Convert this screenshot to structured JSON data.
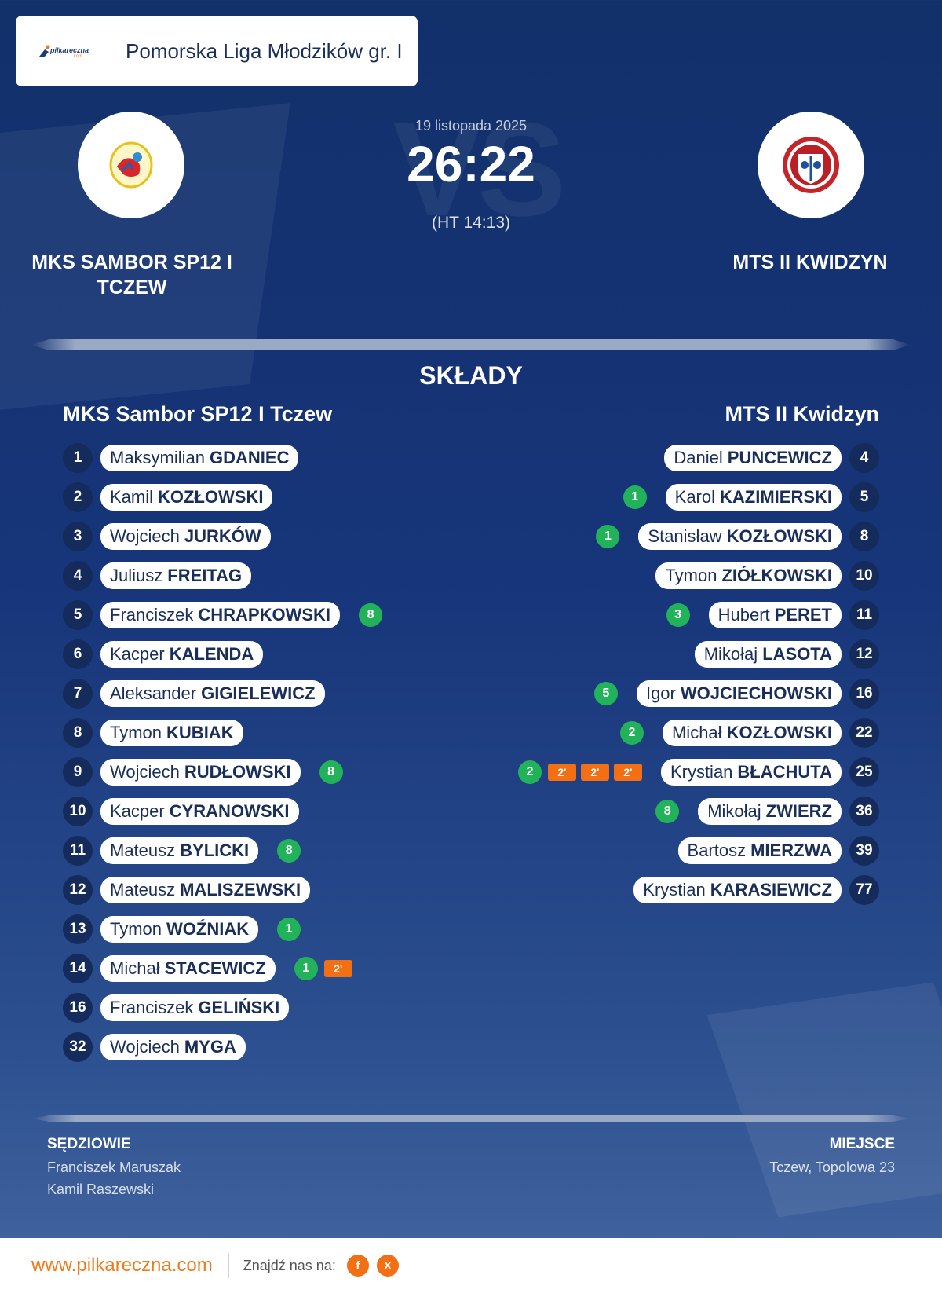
{
  "header": {
    "logo_text": "pilkareczna",
    "logo_subtext": ".com",
    "league": "Pomorska Liga Młodzików gr. I"
  },
  "match": {
    "date": "19 listopada 2025",
    "score": "26:22",
    "halftime": "(HT 14:13)",
    "watermark": "VS",
    "home_name": "MKS SAMBOR SP12 I TCZEW",
    "away_name": "MTS II KWIDZYN"
  },
  "lineups": {
    "title": "SKŁADY",
    "home_team": "MKS Sambor SP12 I Tczew",
    "away_team": "MTS II Kwidzyn",
    "home": [
      {
        "num": "1",
        "first": "Maksymilian",
        "last": "GDANIEC",
        "goals": "",
        "pens": []
      },
      {
        "num": "2",
        "first": "Kamil",
        "last": "KOZŁOWSKI",
        "goals": "",
        "pens": []
      },
      {
        "num": "3",
        "first": "Wojciech",
        "last": "JURKÓW",
        "goals": "",
        "pens": []
      },
      {
        "num": "4",
        "first": "Juliusz",
        "last": "FREITAG",
        "goals": "",
        "pens": []
      },
      {
        "num": "5",
        "first": "Franciszek",
        "last": "CHRAPKOWSKI",
        "goals": "8",
        "pens": []
      },
      {
        "num": "6",
        "first": "Kacper",
        "last": "KALENDA",
        "goals": "",
        "pens": []
      },
      {
        "num": "7",
        "first": "Aleksander",
        "last": "GIGIELEWICZ",
        "goals": "",
        "pens": []
      },
      {
        "num": "8",
        "first": "Tymon",
        "last": "KUBIAK",
        "goals": "",
        "pens": []
      },
      {
        "num": "9",
        "first": "Wojciech",
        "last": "RUDŁOWSKI",
        "goals": "8",
        "pens": []
      },
      {
        "num": "10",
        "first": "Kacper",
        "last": "CYRANOWSKI",
        "goals": "",
        "pens": []
      },
      {
        "num": "11",
        "first": "Mateusz",
        "last": "BYLICKI",
        "goals": "8",
        "pens": []
      },
      {
        "num": "12",
        "first": "Mateusz",
        "last": "MALISZEWSKI",
        "goals": "",
        "pens": []
      },
      {
        "num": "13",
        "first": "Tymon",
        "last": "WOŹNIAK",
        "goals": "1",
        "pens": []
      },
      {
        "num": "14",
        "first": "Michał",
        "last": "STACEWICZ",
        "goals": "1",
        "pens": [
          "2'"
        ]
      },
      {
        "num": "16",
        "first": "Franciszek",
        "last": "GELIŃSKI",
        "goals": "",
        "pens": []
      },
      {
        "num": "32",
        "first": "Wojciech",
        "last": "MYGA",
        "goals": "",
        "pens": []
      }
    ],
    "away": [
      {
        "num": "4",
        "first": "Daniel",
        "last": "PUNCEWICZ",
        "goals": "",
        "pens": []
      },
      {
        "num": "5",
        "first": "Karol",
        "last": "KAZIMIERSKI",
        "goals": "1",
        "pens": []
      },
      {
        "num": "8",
        "first": "Stanisław",
        "last": "KOZŁOWSKI",
        "goals": "1",
        "pens": []
      },
      {
        "num": "10",
        "first": "Tymon",
        "last": "ZIÓŁKOWSKI",
        "goals": "",
        "pens": []
      },
      {
        "num": "11",
        "first": "Hubert",
        "last": "PERET",
        "goals": "3",
        "pens": []
      },
      {
        "num": "12",
        "first": "Mikołaj",
        "last": "LASOTA",
        "goals": "",
        "pens": []
      },
      {
        "num": "16",
        "first": "Igor",
        "last": "WOJCIECHOWSKI",
        "goals": "5",
        "pens": []
      },
      {
        "num": "22",
        "first": "Michał",
        "last": "KOZŁOWSKI",
        "goals": "2",
        "pens": []
      },
      {
        "num": "25",
        "first": "Krystian",
        "last": "BŁACHUTA",
        "goals": "2",
        "pens": [
          "2'",
          "2'",
          "2'"
        ]
      },
      {
        "num": "36",
        "first": "Mikołaj",
        "last": "ZWIERZ",
        "goals": "8",
        "pens": []
      },
      {
        "num": "39",
        "first": "Bartosz",
        "last": "MIERZWA",
        "goals": "",
        "pens": []
      },
      {
        "num": "77",
        "first": "Krystian",
        "last": "KARASIEWICZ",
        "goals": "",
        "pens": []
      }
    ]
  },
  "officials": {
    "referees_title": "SĘDZIOWIE",
    "referees": [
      "Franciszek Maruszak",
      "Kamil Raszewski"
    ],
    "venue_title": "MIEJSCE",
    "venue": "Tczew, Topolowa 23"
  },
  "footer": {
    "url": "www.pilkareczna.com",
    "find_us": "Znajdź nas na:",
    "social": [
      {
        "icon": "facebook-icon",
        "label": "f"
      },
      {
        "icon": "x-icon",
        "label": "X"
      }
    ]
  },
  "colors": {
    "goal_badge": "#22b35a",
    "penalty_badge": "#f26f14",
    "accent": "#f07a1a",
    "navy": "#142b5c"
  }
}
